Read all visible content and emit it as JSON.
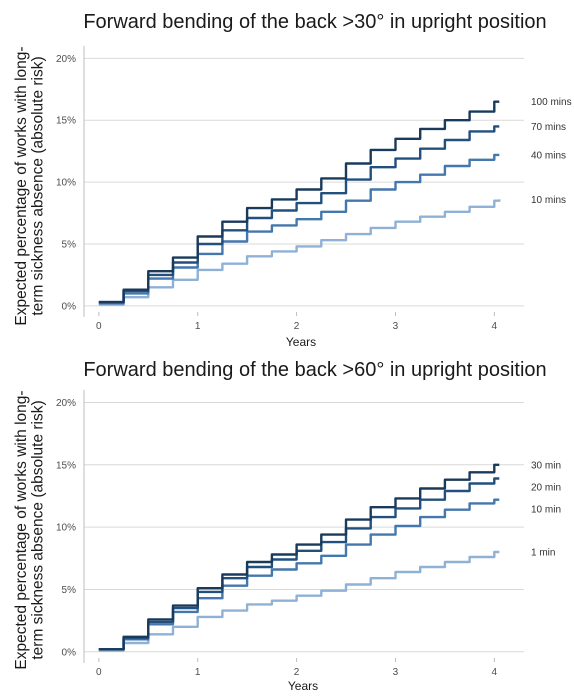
{
  "chart_data": [
    {
      "type": "line",
      "title": "Forward bending of the back >30° in upright position",
      "ylabel_line1": "Expected percentage of works with long-",
      "ylabel_line2": "term sickness absence (absolute risk)",
      "xlabel": "Years",
      "xlim": [
        -0.15,
        4.3
      ],
      "ylim": [
        -0.5,
        21
      ],
      "xticks": [
        0,
        1,
        2,
        3,
        4
      ],
      "xtick_labels": [
        "0",
        "1",
        "2",
        "3",
        "4"
      ],
      "yticks": [
        0,
        5,
        10,
        15,
        20
      ],
      "ytick_labels": [
        "0%",
        "5%",
        "10%",
        "15%",
        "20%"
      ],
      "grid": true,
      "series": [
        {
          "name": "100 mins",
          "color": "#1a3a5c",
          "x": [
            0,
            0.25,
            0.5,
            0.75,
            1,
            1.25,
            1.5,
            1.75,
            2,
            2.25,
            2.5,
            2.75,
            3,
            3.25,
            3.5,
            3.75,
            4,
            4.05
          ],
          "y": [
            0.3,
            1.3,
            2.8,
            3.9,
            5.6,
            6.8,
            7.9,
            8.6,
            9.4,
            10.3,
            11.5,
            12.6,
            13.5,
            14.3,
            15.0,
            15.7,
            16.5,
            16.5
          ]
        },
        {
          "name": "70 mins",
          "color": "#22507e",
          "x": [
            0,
            0.25,
            0.5,
            0.75,
            1,
            1.25,
            1.5,
            1.75,
            2,
            2.25,
            2.5,
            2.75,
            3,
            3.25,
            3.5,
            3.75,
            4,
            4.05
          ],
          "y": [
            0.3,
            1.2,
            2.5,
            3.5,
            5.0,
            6.1,
            7.1,
            7.7,
            8.3,
            9.1,
            10.2,
            11.2,
            11.9,
            12.7,
            13.4,
            14.1,
            14.5,
            14.5
          ]
        },
        {
          "name": "40 mins",
          "color": "#4477ad",
          "x": [
            0,
            0.25,
            0.5,
            0.75,
            1,
            1.25,
            1.5,
            1.75,
            2,
            2.25,
            2.5,
            2.75,
            3,
            3.25,
            3.5,
            3.75,
            4,
            4.05
          ],
          "y": [
            0.2,
            1.0,
            2.2,
            3.1,
            4.2,
            5.2,
            6.0,
            6.5,
            7.0,
            7.6,
            8.5,
            9.4,
            10.0,
            10.6,
            11.3,
            11.8,
            12.2,
            12.2
          ]
        },
        {
          "name": "10 mins",
          "color": "#8fb1d6",
          "x": [
            0,
            0.25,
            0.5,
            0.75,
            1,
            1.25,
            1.5,
            1.75,
            2,
            2.25,
            2.5,
            2.75,
            3,
            3.25,
            3.5,
            3.75,
            4,
            4.05
          ],
          "y": [
            0.1,
            0.7,
            1.5,
            2.1,
            2.9,
            3.4,
            4.0,
            4.4,
            4.8,
            5.3,
            5.8,
            6.3,
            6.8,
            7.2,
            7.6,
            8.0,
            8.5,
            8.6
          ]
        }
      ]
    },
    {
      "type": "line",
      "title": "Forward bending of the back >60° in upright position",
      "ylabel_line1": "Expected percentage of works with long-",
      "ylabel_line2": "term sickness absence (absolute risk)",
      "xlabel": "Years",
      "xlim": [
        -0.15,
        4.3
      ],
      "ylim": [
        -0.5,
        21
      ],
      "xticks": [
        0,
        1,
        2,
        3,
        4
      ],
      "xtick_labels": [
        "0",
        "1",
        "2",
        "3",
        "4"
      ],
      "yticks": [
        0,
        5,
        10,
        15,
        20
      ],
      "ytick_labels": [
        "0%",
        "5%",
        "10%",
        "15%",
        "20%"
      ],
      "grid": true,
      "series": [
        {
          "name": "30 min",
          "color": "#1a3a5c",
          "x": [
            0,
            0.25,
            0.5,
            0.75,
            1,
            1.25,
            1.5,
            1.75,
            2,
            2.25,
            2.5,
            2.75,
            3,
            3.25,
            3.5,
            3.75,
            4,
            4.05
          ],
          "y": [
            0.2,
            1.2,
            2.6,
            3.7,
            5.1,
            6.2,
            7.2,
            7.8,
            8.6,
            9.4,
            10.6,
            11.6,
            12.3,
            13.1,
            13.8,
            14.4,
            15.0,
            15.0
          ]
        },
        {
          "name": "20 min",
          "color": "#22507e",
          "x": [
            0,
            0.25,
            0.5,
            0.75,
            1,
            1.25,
            1.5,
            1.75,
            2,
            2.25,
            2.5,
            2.75,
            3,
            3.25,
            3.5,
            3.75,
            4,
            4.05
          ],
          "y": [
            0.2,
            1.1,
            2.4,
            3.5,
            4.8,
            5.9,
            6.8,
            7.4,
            8.1,
            8.8,
            9.9,
            10.8,
            11.5,
            12.2,
            12.9,
            13.5,
            13.9,
            13.9
          ]
        },
        {
          "name": "10 min",
          "color": "#4477ad",
          "x": [
            0,
            0.25,
            0.5,
            0.75,
            1,
            1.25,
            1.5,
            1.75,
            2,
            2.25,
            2.5,
            2.75,
            3,
            3.25,
            3.5,
            3.75,
            4,
            4.05
          ],
          "y": [
            0.2,
            1.0,
            2.2,
            3.2,
            4.3,
            5.3,
            6.1,
            6.6,
            7.1,
            7.7,
            8.6,
            9.4,
            10.1,
            10.8,
            11.4,
            11.9,
            12.2,
            12.2
          ]
        },
        {
          "name": "1 min",
          "color": "#8fb1d6",
          "x": [
            0,
            0.25,
            0.5,
            0.75,
            1,
            1.25,
            1.5,
            1.75,
            2,
            2.25,
            2.5,
            2.75,
            3,
            3.25,
            3.5,
            3.75,
            4,
            4.05
          ],
          "y": [
            0.1,
            0.7,
            1.4,
            2.0,
            2.8,
            3.3,
            3.8,
            4.1,
            4.5,
            4.9,
            5.4,
            5.9,
            6.4,
            6.8,
            7.2,
            7.6,
            8.0,
            8.0
          ]
        }
      ]
    }
  ]
}
